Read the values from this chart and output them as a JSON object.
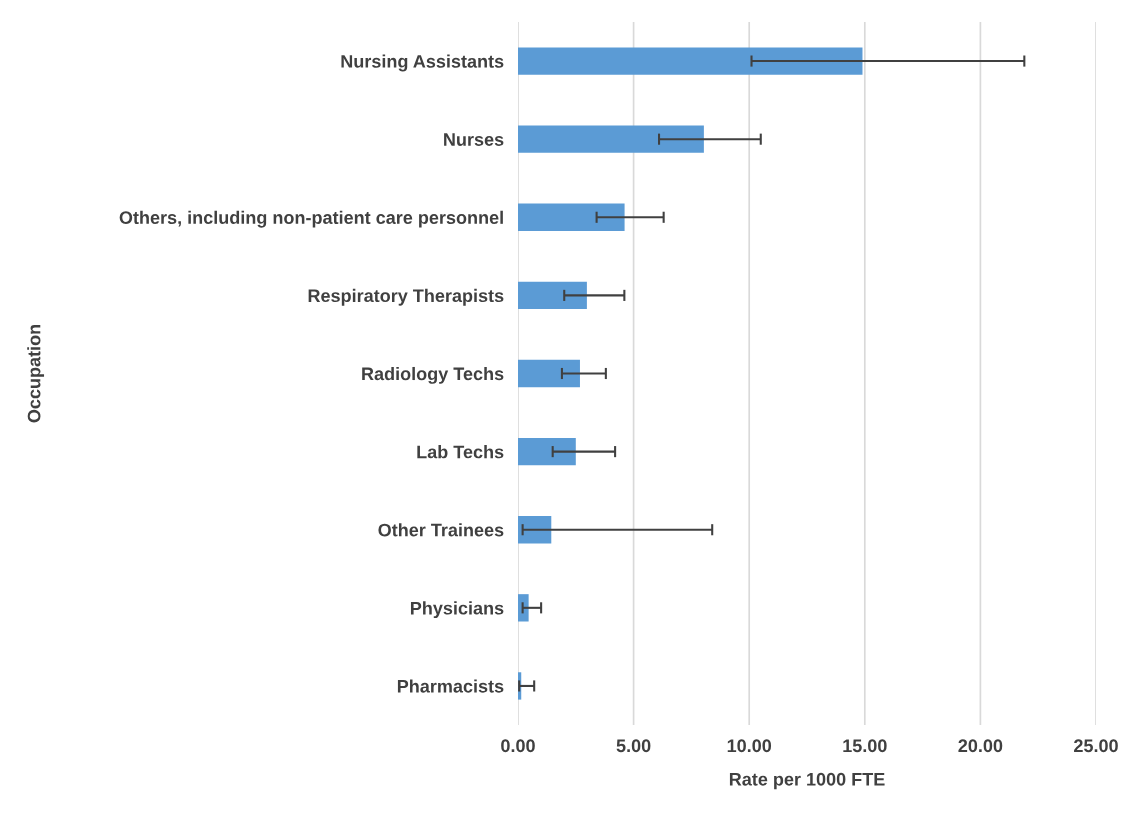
{
  "chart_data": {
    "type": "bar",
    "orientation": "horizontal",
    "xlabel": "Rate per 1000 FTE",
    "ylabel": "Occupation",
    "categories": [
      "Nursing Assistants",
      "Nurses",
      "Others, including non-patient care personnel",
      "Respiratory Therapists",
      "Radiology Techs",
      "Lab Techs",
      "Other Trainees",
      "Physicians",
      "Pharmacists"
    ],
    "values": [
      14.9,
      8.04,
      4.61,
      2.98,
      2.68,
      2.5,
      1.44,
      0.46,
      0.14
    ],
    "errors": [
      [
        10.1,
        21.9
      ],
      [
        6.1,
        10.5
      ],
      [
        3.4,
        6.3
      ],
      [
        2.0,
        4.6
      ],
      [
        1.9,
        3.8
      ],
      [
        1.5,
        4.2
      ],
      [
        0.2,
        8.4
      ],
      [
        0.2,
        1.0
      ],
      [
        0.05,
        0.7
      ]
    ],
    "color": "#5b9bd5",
    "xlim": [
      0,
      25
    ],
    "xticks": [
      {
        "value": 0,
        "label": "0.00"
      },
      {
        "value": 5,
        "label": "5.00"
      },
      {
        "value": 10,
        "label": "10.00"
      },
      {
        "value": 15,
        "label": "15.00"
      },
      {
        "value": 20,
        "label": "20.00"
      },
      {
        "value": 25,
        "label": "25.00"
      }
    ],
    "grid": "x"
  }
}
